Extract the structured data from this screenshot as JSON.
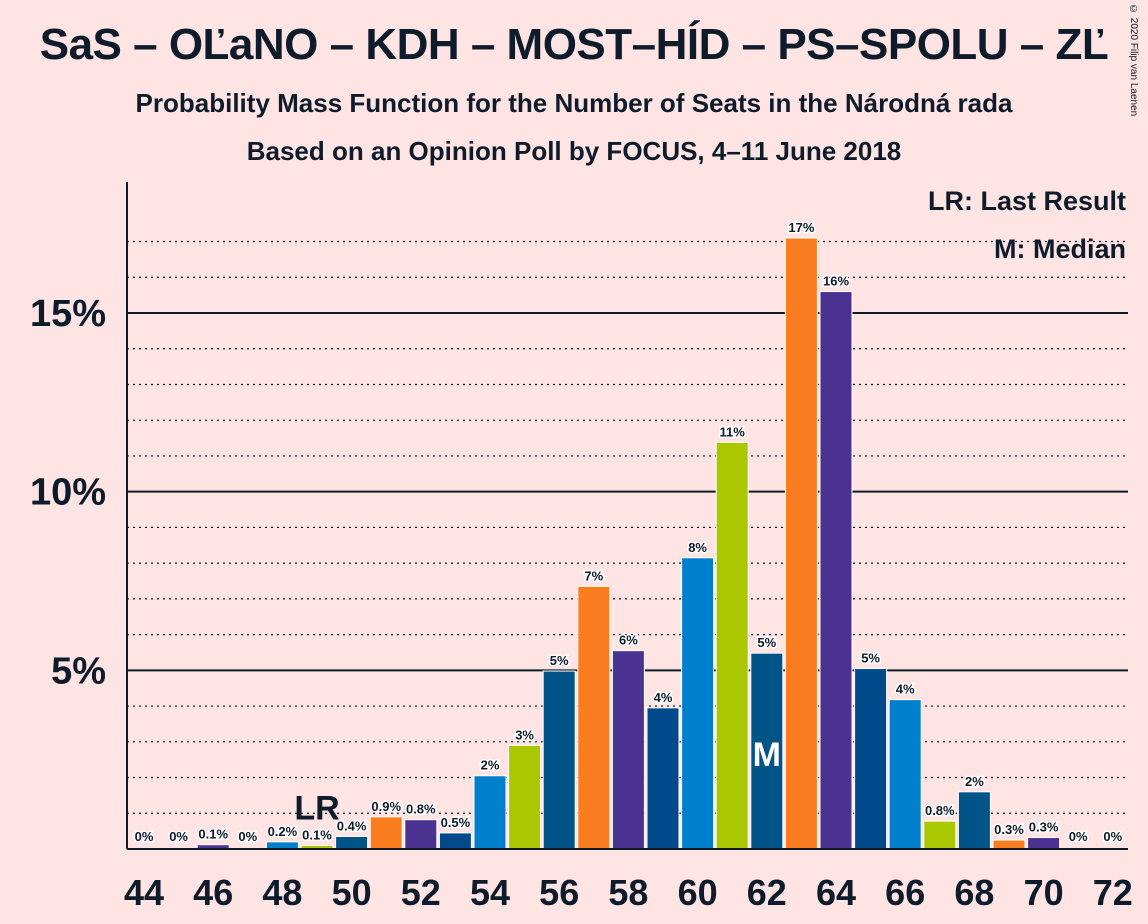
{
  "title": "SaS – OĽaNO – KDH – MOST–HÍD – PS–SPOLU – ZĽ",
  "subtitle1": "Probability Mass Function for the Number of Seats in the Národná rada",
  "subtitle2": "Based on an Opinion Poll by FOCUS, 4–11 June 2018",
  "copyright": "© 2020 Filip van Laenen",
  "legend": {
    "lr": "LR: Last Result",
    "m": "M: Median"
  },
  "markers": {
    "last_result_label": "LR",
    "median_label": "M",
    "last_result_seat": 49,
    "median_seat": 62
  },
  "colors": {
    "background": "#FFE4E4",
    "text": "#0d1b2a",
    "palette": [
      "#F97C1E",
      "#4B3190",
      "#004A8C",
      "#007FCC",
      "#ABC700",
      "#005488"
    ]
  },
  "chart_data": {
    "type": "bar",
    "xlabel": "",
    "ylabel": "",
    "ylim": [
      0,
      18.5
    ],
    "y_ticks": [
      {
        "value": 5,
        "label": "5%"
      },
      {
        "value": 10,
        "label": "10%"
      },
      {
        "value": 15,
        "label": "15%"
      }
    ],
    "x_tick_labels": [
      "44",
      "46",
      "48",
      "50",
      "52",
      "54",
      "56",
      "58",
      "60",
      "62",
      "64",
      "66",
      "68",
      "70",
      "72"
    ],
    "bars": [
      {
        "seats": 44,
        "value": 0,
        "label": "0%",
        "color": "#F97C1E"
      },
      {
        "seats": 45,
        "value": 0,
        "label": "0%",
        "color": "#F97C1E"
      },
      {
        "seats": 46,
        "value": 0.12,
        "label": "0.1%",
        "color": "#4B3190"
      },
      {
        "seats": 47,
        "value": 0,
        "label": "0%",
        "color": "#4B3190"
      },
      {
        "seats": 48,
        "value": 0.2,
        "label": "0.2%",
        "color": "#007FCC"
      },
      {
        "seats": 49,
        "value": 0.1,
        "label": "0.1%",
        "color": "#ABC700"
      },
      {
        "seats": 50,
        "value": 0.35,
        "label": "0.4%",
        "color": "#005488"
      },
      {
        "seats": 51,
        "value": 0.9,
        "label": "0.9%",
        "color": "#F97C1E"
      },
      {
        "seats": 52,
        "value": 0.82,
        "label": "0.8%",
        "color": "#4B3190"
      },
      {
        "seats": 53,
        "value": 0.45,
        "label": "0.5%",
        "color": "#004A8C"
      },
      {
        "seats": 54,
        "value": 2.05,
        "label": "2%",
        "color": "#007FCC"
      },
      {
        "seats": 55,
        "value": 2.9,
        "label": "3%",
        "color": "#ABC700"
      },
      {
        "seats": 56,
        "value": 4.98,
        "label": "5%",
        "color": "#005488"
      },
      {
        "seats": 57,
        "value": 7.35,
        "label": "7%",
        "color": "#F97C1E"
      },
      {
        "seats": 58,
        "value": 5.55,
        "label": "6%",
        "color": "#4B3190"
      },
      {
        "seats": 59,
        "value": 3.95,
        "label": "4%",
        "color": "#004A8C"
      },
      {
        "seats": 60,
        "value": 8.15,
        "label": "8%",
        "color": "#007FCC"
      },
      {
        "seats": 61,
        "value": 11.38,
        "label": "11%",
        "color": "#ABC700"
      },
      {
        "seats": 62,
        "value": 5.48,
        "label": "5%",
        "color": "#005488"
      },
      {
        "seats": 63,
        "value": 17.1,
        "label": "17%",
        "color": "#F97C1E"
      },
      {
        "seats": 64,
        "value": 15.6,
        "label": "16%",
        "color": "#4B3190"
      },
      {
        "seats": 65,
        "value": 5.05,
        "label": "5%",
        "color": "#004A8C"
      },
      {
        "seats": 66,
        "value": 4.18,
        "label": "4%",
        "color": "#007FCC"
      },
      {
        "seats": 67,
        "value": 0.78,
        "label": "0.8%",
        "color": "#ABC700"
      },
      {
        "seats": 68,
        "value": 1.6,
        "label": "2%",
        "color": "#005488"
      },
      {
        "seats": 69,
        "value": 0.25,
        "label": "0.3%",
        "color": "#F97C1E"
      },
      {
        "seats": 70,
        "value": 0.32,
        "label": "0.3%",
        "color": "#4B3190"
      },
      {
        "seats": 71,
        "value": 0,
        "label": "0%",
        "color": "#4B3190"
      },
      {
        "seats": 72,
        "value": 0,
        "label": "0%",
        "color": "#004A8C"
      }
    ]
  }
}
